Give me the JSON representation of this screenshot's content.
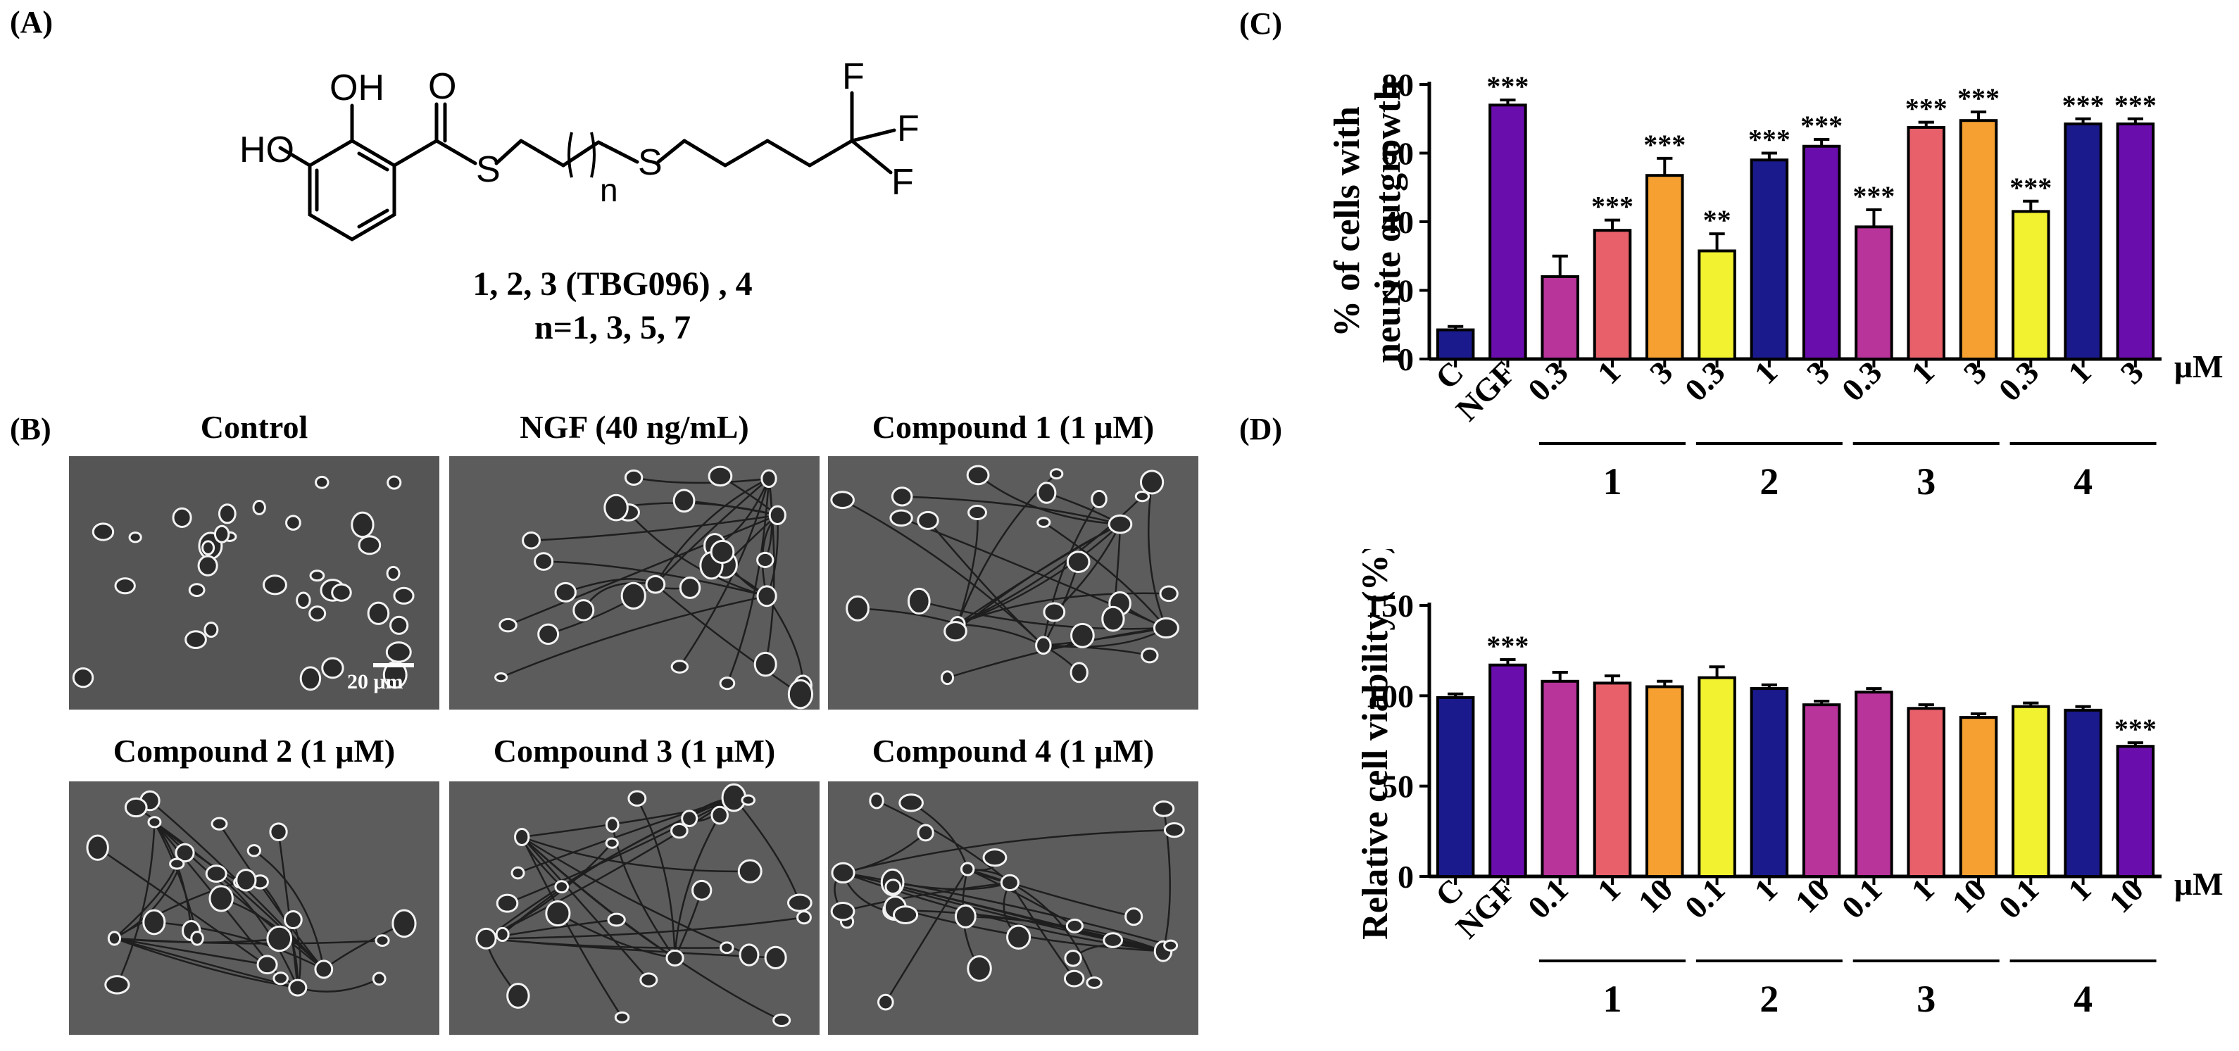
{
  "panel_labels": {
    "a": "(A)",
    "b": "(B)",
    "c": "(C)",
    "d": "(D)"
  },
  "structure": {
    "atoms": {
      "oh_top": "OH",
      "ho_left": "HO",
      "carbonyl_o": "O",
      "s1": "S",
      "s2": "S",
      "n": "n",
      "f1": "F",
      "f2": "F",
      "f3": "F"
    },
    "compounds_line": "1, 2, 3 (TBG096) , 4",
    "n_line": "n=1, 3, 5, 7"
  },
  "micrographs": [
    {
      "caption": "Control"
    },
    {
      "caption": "NGF (40 ng/mL)"
    },
    {
      "caption": "Compound 1 (1 μM)"
    },
    {
      "caption": "Compound 2 (1 μM)"
    },
    {
      "caption": "Compound 3 (1 μM)"
    },
    {
      "caption": "Compound 4 (1 μM)"
    }
  ],
  "scale_bar_label": "20 μm",
  "colors": {
    "navy": "#1a1a8c",
    "purple": "#6a0dad",
    "magenta": "#b8339a",
    "salmon": "#e8606a",
    "orange": "#f5a030",
    "yellow": "#f2f230"
  },
  "chart_data": [
    {
      "panel": "C",
      "type": "bar",
      "ylabel": [
        "% of cells with",
        "neurite outgrowth"
      ],
      "ylim": [
        0,
        80
      ],
      "yticks": [
        0,
        20,
        40,
        60,
        80
      ],
      "unit_label": "μM",
      "categories": [
        "C",
        "NGF",
        "0.3",
        "1",
        "3",
        "0.3",
        "1",
        "3",
        "0.3",
        "1",
        "3",
        "0.3",
        "1",
        "3"
      ],
      "values": [
        8.5,
        74,
        24,
        37.5,
        53.5,
        31.5,
        58,
        62,
        38.5,
        67.5,
        69.5,
        43,
        68.5,
        68.5
      ],
      "errors": [
        1,
        1.5,
        6,
        3,
        5,
        5,
        2,
        2,
        5,
        1.5,
        2.5,
        3,
        1.5,
        1.5
      ],
      "bar_colors": [
        "navy",
        "purple",
        "magenta",
        "salmon",
        "orange",
        "yellow",
        "navy",
        "purple",
        "magenta",
        "salmon",
        "orange",
        "yellow",
        "navy",
        "purple"
      ],
      "significance": [
        "",
        "***",
        "",
        "***",
        "***",
        "**",
        "***",
        "***",
        "***",
        "***",
        "***",
        "***",
        "***",
        "***"
      ],
      "groups": [
        {
          "label": "1",
          "from": 2,
          "to": 4
        },
        {
          "label": "2",
          "from": 5,
          "to": 7
        },
        {
          "label": "3",
          "from": 8,
          "to": 10
        },
        {
          "label": "4",
          "from": 11,
          "to": 13
        }
      ]
    },
    {
      "panel": "D",
      "type": "bar",
      "ylabel": [
        "Relative cell viability (%)"
      ],
      "ylim": [
        0,
        150
      ],
      "yticks": [
        0,
        50,
        100,
        150
      ],
      "unit_label": "μM",
      "categories": [
        "C",
        "NGF",
        "0.1",
        "1",
        "10",
        "0.1",
        "1",
        "10",
        "0.1",
        "1",
        "10",
        "0.1",
        "1",
        "10"
      ],
      "values": [
        99,
        117,
        108,
        107,
        105,
        110,
        104,
        95,
        102,
        93,
        88,
        94,
        92,
        72
      ],
      "errors": [
        2,
        3,
        5,
        4,
        3,
        6,
        2,
        2,
        2,
        2,
        2,
        2,
        2,
        2
      ],
      "bar_colors": [
        "navy",
        "purple",
        "magenta",
        "salmon",
        "orange",
        "yellow",
        "navy",
        "magenta",
        "magenta",
        "salmon",
        "orange",
        "yellow",
        "navy",
        "purple"
      ],
      "significance": [
        "",
        "***",
        "",
        "",
        "",
        "",
        "",
        "",
        "",
        "",
        "",
        "",
        "",
        "***"
      ],
      "groups": [
        {
          "label": "1",
          "from": 2,
          "to": 4
        },
        {
          "label": "2",
          "from": 5,
          "to": 7
        },
        {
          "label": "3",
          "from": 8,
          "to": 10
        },
        {
          "label": "4",
          "from": 11,
          "to": 13
        }
      ]
    }
  ]
}
